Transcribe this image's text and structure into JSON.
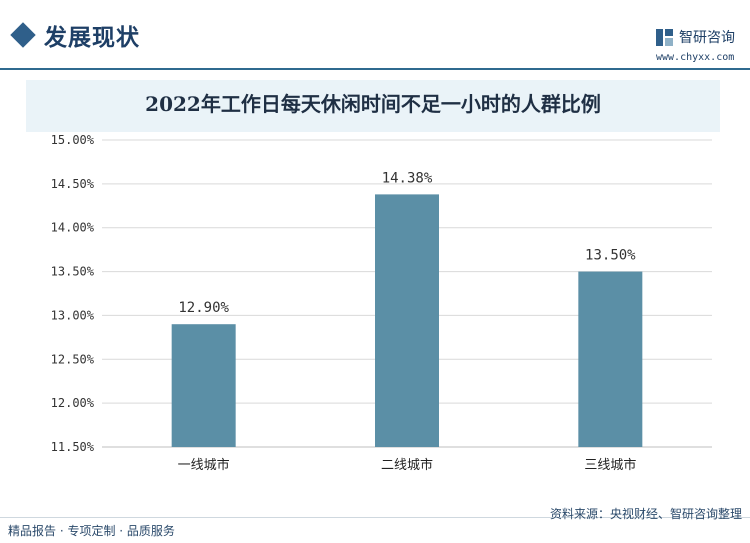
{
  "header": {
    "section_title": "发展现状",
    "brand_name": "智研咨询",
    "brand_url": "www.chyxx.com",
    "accent_color": "#2f5f8a"
  },
  "footer": {
    "left_text": "精品报告 · 专项定制 · 品质服务",
    "source_text": "资料来源：央视财经、智研咨询整理"
  },
  "chart_data": {
    "type": "bar",
    "title": "2022年工作日每天休闲时间不足一小时的人群比例",
    "categories": [
      "一线城市",
      "二线城市",
      "三线城市"
    ],
    "values": [
      12.9,
      14.38,
      13.5
    ],
    "value_labels": [
      "12.90%",
      "14.38%",
      "13.50%"
    ],
    "ylim": [
      11.5,
      15.0
    ],
    "y_ticks": [
      11.5,
      12.0,
      12.5,
      13.0,
      13.5,
      14.0,
      14.5,
      15.0
    ],
    "y_tick_labels": [
      "11.50%",
      "12.00%",
      "12.50%",
      "13.00%",
      "13.50%",
      "14.00%",
      "14.50%",
      "15.00%"
    ],
    "grid": true,
    "bar_color": "#5b8fa6"
  }
}
